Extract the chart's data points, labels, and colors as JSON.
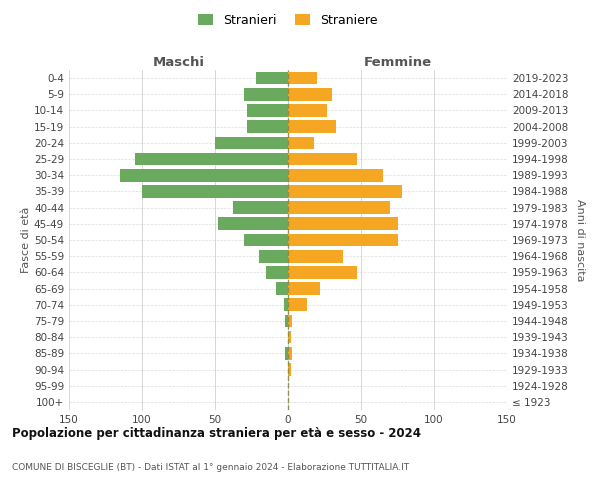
{
  "age_groups": [
    "100+",
    "95-99",
    "90-94",
    "85-89",
    "80-84",
    "75-79",
    "70-74",
    "65-69",
    "60-64",
    "55-59",
    "50-54",
    "45-49",
    "40-44",
    "35-39",
    "30-34",
    "25-29",
    "20-24",
    "15-19",
    "10-14",
    "5-9",
    "0-4"
  ],
  "birth_years": [
    "≤ 1923",
    "1924-1928",
    "1929-1933",
    "1934-1938",
    "1939-1943",
    "1944-1948",
    "1949-1953",
    "1954-1958",
    "1959-1963",
    "1964-1968",
    "1969-1973",
    "1974-1978",
    "1979-1983",
    "1984-1988",
    "1989-1993",
    "1994-1998",
    "1999-2003",
    "2004-2008",
    "2009-2013",
    "2014-2018",
    "2019-2023"
  ],
  "maschi": [
    0,
    0,
    0,
    2,
    0,
    2,
    3,
    8,
    15,
    20,
    30,
    48,
    38,
    100,
    115,
    105,
    50,
    28,
    28,
    30,
    22
  ],
  "femmine": [
    0,
    0,
    2,
    3,
    2,
    3,
    13,
    22,
    47,
    38,
    75,
    75,
    70,
    78,
    65,
    47,
    18,
    33,
    27,
    30,
    20
  ],
  "maschi_color": "#6aaa5e",
  "femmine_color": "#f5a623",
  "bg_color": "#ffffff",
  "grid_color": "#cccccc",
  "dashed_color": "#888844",
  "title": "Popolazione per cittadinanza straniera per età e sesso - 2024",
  "subtitle": "COMUNE DI BISCEGLIE (BT) - Dati ISTAT al 1° gennaio 2024 - Elaborazione TUTTITALIA.IT",
  "label_maschi": "Maschi",
  "label_femmine": "Femmine",
  "ylabel_left": "Fasce di età",
  "ylabel_right": "Anni di nascita",
  "legend_m": "Stranieri",
  "legend_f": "Straniere",
  "xlim": 150
}
